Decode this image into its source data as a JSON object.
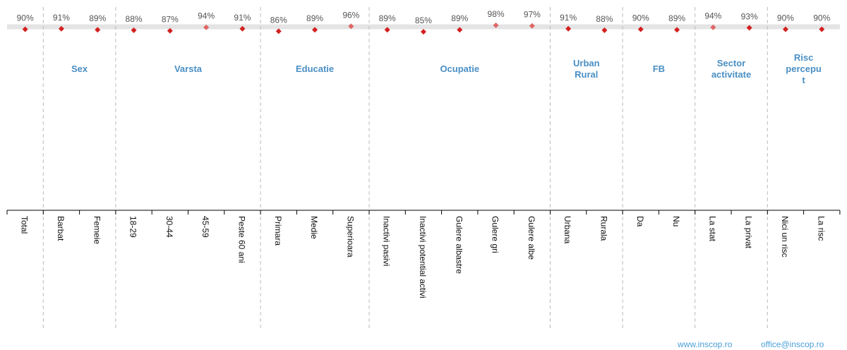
{
  "chart_data": {
    "type": "scatter",
    "title": "",
    "categories": [
      "Total",
      "Barbat",
      "Femeie",
      "18-29",
      "30-44",
      "45-59",
      "Peste 60 ani",
      "Primara",
      "Medie",
      "Superioara",
      "Inactivi pasivi",
      "Inactivi potential activi",
      "Gulere albastre",
      "Gulere gri",
      "Gulere albe",
      "Urbana",
      "Rurala",
      "Da",
      "Nu",
      "La stat",
      "La privat",
      "Nici un risc",
      "La risc"
    ],
    "values": [
      90,
      91,
      89,
      88,
      87,
      94,
      91,
      86,
      89,
      96,
      89,
      85,
      89,
      98,
      97,
      91,
      88,
      90,
      89,
      94,
      93,
      90,
      90
    ],
    "value_labels": [
      "90%",
      "91%",
      "89%",
      "88%",
      "87%",
      "94%",
      "91%",
      "86%",
      "89%",
      "96%",
      "89%",
      "85%",
      "89%",
      "98%",
      "97%",
      "91%",
      "88%",
      "90%",
      "89%",
      "94%",
      "93%",
      "90%",
      "90%"
    ],
    "groups": [
      {
        "label": "Sex",
        "start": 1,
        "end": 2
      },
      {
        "label": "Varsta",
        "start": 3,
        "end": 6
      },
      {
        "label": "Educatie",
        "start": 7,
        "end": 9
      },
      {
        "label": "Ocupatie",
        "start": 10,
        "end": 14
      },
      {
        "label": "Urban\nRural",
        "start": 15,
        "end": 16
      },
      {
        "label": "FB",
        "start": 17,
        "end": 18
      },
      {
        "label": "Sector\nactivitate",
        "start": 19,
        "end": 20
      },
      {
        "label": "Risc\npercepu\nt",
        "start": 21,
        "end": 22
      }
    ],
    "band": [
      90,
      100
    ],
    "colors": {
      "marker": "#d42020",
      "marker_high": "#e06666",
      "group_label": "#4a8fc4",
      "band": "#e4e4e4",
      "value_label": "#555555",
      "axis": "#000000",
      "separator": "#bbbbbb"
    },
    "grid": false,
    "legend": "none"
  },
  "footer": {
    "website": "www.inscop.ro",
    "email": "office@inscop.ro"
  }
}
